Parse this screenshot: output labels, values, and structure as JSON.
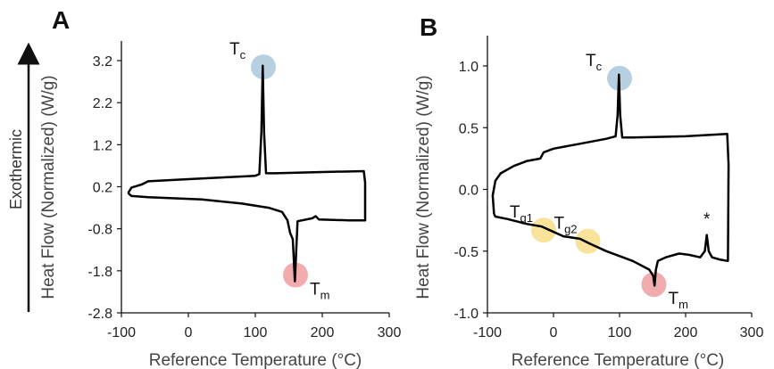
{
  "exothermic_label": "Exothermic",
  "colors": {
    "curve": "#000000",
    "blue": "#a9c7dc",
    "red": "#ef9f9f",
    "yellow": "#f8de8a"
  },
  "chart_data": [
    {
      "panel": "A",
      "type": "line",
      "xlabel": "Reference Temperature (°C)",
      "ylabel": "Heat Flow (Normalized) (W/g)",
      "xlim": [
        -100,
        300
      ],
      "ylim": [
        -2.8,
        3.2
      ],
      "xticks": [
        -100,
        0,
        100,
        200,
        300
      ],
      "yticks": [
        -2.8,
        -1.8,
        -0.8,
        0.2,
        1.2,
        2.2,
        3.2
      ],
      "ytick_labels": [
        "-2.8",
        "-1.8",
        "-0.8",
        "0.2",
        "1.2",
        "2.2",
        "3.2"
      ],
      "series": [
        {
          "points": [
            [
              -90,
              0.05
            ],
            [
              -85,
              0.18
            ],
            [
              -70,
              0.25
            ],
            [
              -60,
              0.33
            ],
            [
              0,
              0.38
            ],
            [
              50,
              0.42
            ],
            [
              100,
              0.46
            ],
            [
              106,
              0.5
            ],
            [
              109,
              1.5
            ],
            [
              111,
              3.08
            ],
            [
              113,
              1.5
            ],
            [
              116,
              0.52
            ],
            [
              130,
              0.52
            ],
            [
              200,
              0.55
            ],
            [
              262,
              0.57
            ],
            [
              264,
              0.3
            ],
            [
              264,
              -0.6
            ],
            [
              240,
              -0.6
            ],
            [
              195,
              -0.58
            ],
            [
              190,
              -0.5
            ],
            [
              185,
              -0.55
            ],
            [
              170,
              -0.6
            ],
            [
              163,
              -0.62
            ],
            [
              162,
              -1.0
            ],
            [
              159,
              -2.05
            ],
            [
              156,
              -1.05
            ],
            [
              152,
              -0.9
            ],
            [
              148,
              -0.6
            ],
            [
              140,
              -0.4
            ],
            [
              120,
              -0.3
            ],
            [
              80,
              -0.2
            ],
            [
              20,
              -0.1
            ],
            [
              -60,
              -0.05
            ],
            [
              -85,
              -0.02
            ],
            [
              -90,
              0.05
            ]
          ]
        }
      ],
      "annotations": [
        {
          "label": "T",
          "sub": "c",
          "x": 112,
          "y": 3.05,
          "color": "blue"
        },
        {
          "label": "T",
          "sub": "m",
          "x": 160,
          "y": -1.9,
          "color": "red"
        }
      ]
    },
    {
      "panel": "B",
      "type": "line",
      "xlabel": "Reference Temperature (°C)",
      "ylabel": "Heat Flow (Normalized) (W/g)",
      "xlim": [
        -100,
        300
      ],
      "ylim": [
        -1.0,
        1.0
      ],
      "xticks": [
        -100,
        0,
        100,
        200,
        300
      ],
      "yticks": [
        -1.0,
        -0.5,
        0.0,
        0.5,
        1.0
      ],
      "ytick_labels": [
        "-1.0",
        "-0.5",
        "0.0",
        "0.5",
        "1.0"
      ],
      "series": [
        {
          "points": [
            [
              -90,
              -0.2
            ],
            [
              -92,
              -0.05
            ],
            [
              -88,
              0.07
            ],
            [
              -80,
              0.13
            ],
            [
              -60,
              0.19
            ],
            [
              -40,
              0.23
            ],
            [
              -20,
              0.25
            ],
            [
              -15,
              0.3
            ],
            [
              0,
              0.33
            ],
            [
              40,
              0.37
            ],
            [
              80,
              0.41
            ],
            [
              94,
              0.43
            ],
            [
              97,
              0.6
            ],
            [
              99,
              0.93
            ],
            [
              101,
              0.6
            ],
            [
              104,
              0.42
            ],
            [
              120,
              0.42
            ],
            [
              200,
              0.43
            ],
            [
              263,
              0.45
            ],
            [
              265,
              0.2
            ],
            [
              264,
              -0.58
            ],
            [
              253,
              -0.57
            ],
            [
              240,
              -0.55
            ],
            [
              235,
              -0.5
            ],
            [
              232,
              -0.37
            ],
            [
              229,
              -0.5
            ],
            [
              222,
              -0.55
            ],
            [
              205,
              -0.53
            ],
            [
              190,
              -0.52
            ],
            [
              170,
              -0.55
            ],
            [
              158,
              -0.58
            ],
            [
              155,
              -0.65
            ],
            [
              153,
              -0.78
            ],
            [
              151,
              -0.7
            ],
            [
              145,
              -0.65
            ],
            [
              120,
              -0.58
            ],
            [
              80,
              -0.5
            ],
            [
              55,
              -0.44
            ],
            [
              40,
              -0.4
            ],
            [
              15,
              -0.38
            ],
            [
              -10,
              -0.32
            ],
            [
              -18,
              -0.3
            ],
            [
              -40,
              -0.28
            ],
            [
              -70,
              -0.24
            ],
            [
              -88,
              -0.22
            ],
            [
              -90,
              -0.2
            ]
          ]
        }
      ],
      "annotations": [
        {
          "label": "T",
          "sub": "c",
          "x": 100,
          "y": 0.9,
          "color": "blue"
        },
        {
          "label": "T",
          "sub": "g1",
          "x": -15,
          "y": -0.33,
          "color": "yellow"
        },
        {
          "label": "T",
          "sub": "g2",
          "x": 52,
          "y": -0.42,
          "color": "yellow"
        },
        {
          "label": "T",
          "sub": "m",
          "x": 152,
          "y": -0.77,
          "color": "red"
        },
        {
          "label": "*",
          "sub": "",
          "x": 232,
          "y": -0.3,
          "color": "none"
        }
      ]
    }
  ]
}
